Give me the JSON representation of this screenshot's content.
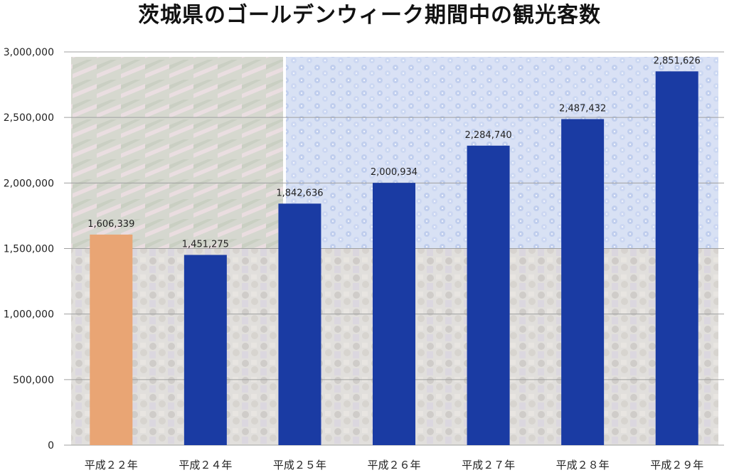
{
  "chart_data": {
    "type": "bar",
    "title": "茨城県のゴールデンウィーク期間中の観光客数",
    "categories": [
      "平成２２年",
      "平成２４年",
      "平成２５年",
      "平成２６年",
      "平成２７年",
      "平成２８年",
      "平成２９年"
    ],
    "values": [
      1606339,
      1451275,
      1842636,
      2000934,
      2284740,
      2487432,
      2851626
    ],
    "data_labels": [
      "1,606,339",
      "1,451,275",
      "1,842,636",
      "2,000,934",
      "2,284,740",
      "2,487,432",
      "2,851,626"
    ],
    "ylim": [
      0,
      3000000
    ],
    "y_ticks": [
      0,
      500000,
      1000000,
      1500000,
      2000000,
      2500000,
      3000000
    ],
    "y_tick_labels": [
      "0",
      "500,000",
      "1,000,000",
      "1,500,000",
      "2,000,000",
      "2,500,000",
      "3,000,000"
    ],
    "grid": true,
    "legend": "none",
    "colors": {
      "highlight": "#E9A574",
      "bar": "#1A3BA3"
    },
    "highlight_index": 0
  }
}
